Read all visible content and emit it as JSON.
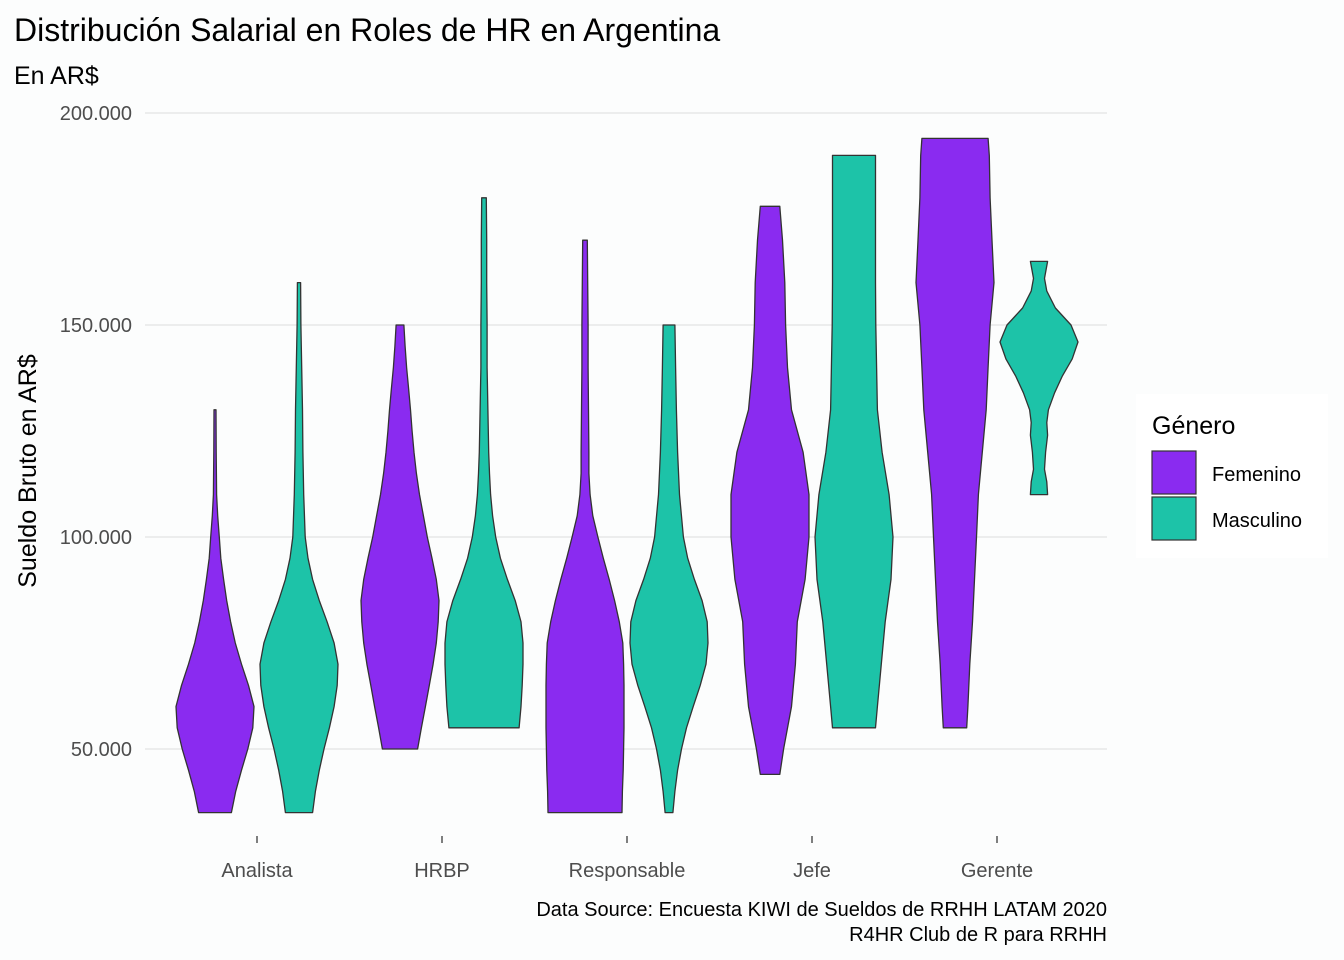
{
  "chart_data": {
    "type": "violin",
    "title": "Distribución Salarial en Roles de HR en Argentina",
    "subtitle": "En AR$",
    "xlabel": "",
    "ylabel": "Sueldo Bruto en AR$",
    "ylim": [
      30000,
      200000
    ],
    "yticks": [
      50000,
      100000,
      150000,
      200000
    ],
    "ytick_labels": [
      "50.000",
      "100.000",
      "150.000",
      "200.000"
    ],
    "categories": [
      "Analista",
      "HRBP",
      "Responsable",
      "Jefe",
      "Gerente"
    ],
    "legend": {
      "title": "Género",
      "position": "right",
      "items": [
        {
          "name": "Femenino",
          "color": "#8a2bf0"
        },
        {
          "name": "Masculino",
          "color": "#1dc3a8"
        }
      ]
    },
    "caption": [
      "Data Source: Encuesta KIWI de Sueldos de RRHH LATAM 2020",
      "R4HR Club de R para RRHH"
    ],
    "grid": "horizontal major",
    "series": [
      {
        "name": "Femenino",
        "color": "#8a2bf0",
        "violins": [
          {
            "category": "Analista",
            "profile": [
              [
                35000,
                0.42
              ],
              [
                40000,
                0.53
              ],
              [
                45000,
                0.68
              ],
              [
                50000,
                0.84
              ],
              [
                55000,
                0.97
              ],
              [
                60000,
                1.0
              ],
              [
                65000,
                0.86
              ],
              [
                70000,
                0.68
              ],
              [
                75000,
                0.52
              ],
              [
                80000,
                0.4
              ],
              [
                85000,
                0.3
              ],
              [
                90000,
                0.22
              ],
              [
                95000,
                0.15
              ],
              [
                100000,
                0.11
              ],
              [
                105000,
                0.07
              ],
              [
                110000,
                0.04
              ],
              [
                115000,
                0.035
              ],
              [
                120000,
                0.03
              ],
              [
                125000,
                0.028
              ],
              [
                130000,
                0.025
              ]
            ]
          },
          {
            "category": "HRBP",
            "profile": [
              [
                50000,
                0.45
              ],
              [
                55000,
                0.55
              ],
              [
                60000,
                0.65
              ],
              [
                65000,
                0.75
              ],
              [
                70000,
                0.85
              ],
              [
                75000,
                0.93
              ],
              [
                80000,
                0.98
              ],
              [
                85000,
                1.0
              ],
              [
                90000,
                0.93
              ],
              [
                95000,
                0.82
              ],
              [
                100000,
                0.7
              ],
              [
                105000,
                0.6
              ],
              [
                110000,
                0.5
              ],
              [
                115000,
                0.42
              ],
              [
                120000,
                0.36
              ],
              [
                125000,
                0.31
              ],
              [
                130000,
                0.27
              ],
              [
                135000,
                0.22
              ],
              [
                140000,
                0.17
              ],
              [
                145000,
                0.13
              ],
              [
                150000,
                0.1
              ]
            ]
          },
          {
            "category": "Responsable",
            "profile": [
              [
                35000,
                0.95
              ],
              [
                40000,
                0.96
              ],
              [
                45000,
                0.98
              ],
              [
                50000,
                0.99
              ],
              [
                55000,
                1.0
              ],
              [
                60000,
                1.0
              ],
              [
                65000,
                1.0
              ],
              [
                70000,
                0.99
              ],
              [
                75000,
                0.97
              ],
              [
                80000,
                0.88
              ],
              [
                85000,
                0.76
              ],
              [
                90000,
                0.62
              ],
              [
                95000,
                0.47
              ],
              [
                100000,
                0.33
              ],
              [
                105000,
                0.2
              ],
              [
                110000,
                0.13
              ],
              [
                115000,
                0.1
              ],
              [
                120000,
                0.1
              ],
              [
                130000,
                0.09
              ],
              [
                140000,
                0.08
              ],
              [
                150000,
                0.08
              ],
              [
                160000,
                0.07
              ],
              [
                170000,
                0.06
              ]
            ]
          },
          {
            "category": "Jefe",
            "profile": [
              [
                44000,
                0.25
              ],
              [
                50000,
                0.35
              ],
              [
                60000,
                0.55
              ],
              [
                70000,
                0.65
              ],
              [
                80000,
                0.7
              ],
              [
                90000,
                0.9
              ],
              [
                100000,
                1.0
              ],
              [
                110000,
                1.0
              ],
              [
                120000,
                0.85
              ],
              [
                130000,
                0.55
              ],
              [
                140000,
                0.45
              ],
              [
                150000,
                0.4
              ],
              [
                160000,
                0.38
              ],
              [
                170000,
                0.32
              ],
              [
                178000,
                0.25
              ]
            ]
          },
          {
            "category": "Gerente",
            "profile": [
              [
                55000,
                0.3
              ],
              [
                60000,
                0.33
              ],
              [
                70000,
                0.38
              ],
              [
                80000,
                0.45
              ],
              [
                90000,
                0.5
              ],
              [
                100000,
                0.55
              ],
              [
                110000,
                0.6
              ],
              [
                120000,
                0.7
              ],
              [
                130000,
                0.8
              ],
              [
                140000,
                0.85
              ],
              [
                150000,
                0.9
              ],
              [
                160000,
                1.0
              ],
              [
                170000,
                0.95
              ],
              [
                180000,
                0.9
              ],
              [
                190000,
                0.88
              ],
              [
                194000,
                0.85
              ]
            ]
          }
        ]
      },
      {
        "name": "Masculino",
        "color": "#1dc3a8",
        "violins": [
          {
            "category": "Analista",
            "profile": [
              [
                35000,
                0.35
              ],
              [
                40000,
                0.42
              ],
              [
                45000,
                0.52
              ],
              [
                50000,
                0.64
              ],
              [
                55000,
                0.78
              ],
              [
                60000,
                0.9
              ],
              [
                65000,
                0.98
              ],
              [
                70000,
                1.0
              ],
              [
                75000,
                0.9
              ],
              [
                80000,
                0.72
              ],
              [
                85000,
                0.52
              ],
              [
                90000,
                0.35
              ],
              [
                95000,
                0.23
              ],
              [
                100000,
                0.16
              ],
              [
                110000,
                0.12
              ],
              [
                120000,
                0.1
              ],
              [
                130000,
                0.09
              ],
              [
                140000,
                0.07
              ],
              [
                150000,
                0.05
              ],
              [
                160000,
                0.04
              ]
            ]
          },
          {
            "category": "HRBP",
            "profile": [
              [
                55000,
                0.9
              ],
              [
                60000,
                0.95
              ],
              [
                65000,
                0.98
              ],
              [
                70000,
                1.0
              ],
              [
                75000,
                1.0
              ],
              [
                80000,
                0.95
              ],
              [
                85000,
                0.8
              ],
              [
                90000,
                0.6
              ],
              [
                95000,
                0.42
              ],
              [
                100000,
                0.3
              ],
              [
                105000,
                0.22
              ],
              [
                110000,
                0.17
              ],
              [
                115000,
                0.14
              ],
              [
                120000,
                0.12
              ],
              [
                130000,
                0.1
              ],
              [
                140000,
                0.08
              ],
              [
                150000,
                0.08
              ],
              [
                160000,
                0.07
              ],
              [
                170000,
                0.07
              ],
              [
                180000,
                0.06
              ]
            ]
          },
          {
            "category": "Responsable",
            "profile": [
              [
                35000,
                0.1
              ],
              [
                40000,
                0.15
              ],
              [
                45000,
                0.22
              ],
              [
                50000,
                0.32
              ],
              [
                55000,
                0.45
              ],
              [
                60000,
                0.62
              ],
              [
                65000,
                0.8
              ],
              [
                70000,
                0.95
              ],
              [
                75000,
                1.0
              ],
              [
                80000,
                0.98
              ],
              [
                85000,
                0.85
              ],
              [
                90000,
                0.65
              ],
              [
                95000,
                0.48
              ],
              [
                100000,
                0.37
              ],
              [
                110000,
                0.27
              ],
              [
                120000,
                0.22
              ],
              [
                130000,
                0.19
              ],
              [
                140000,
                0.17
              ],
              [
                150000,
                0.15
              ]
            ]
          },
          {
            "category": "Jefe",
            "profile": [
              [
                55000,
                0.55
              ],
              [
                60000,
                0.6
              ],
              [
                70000,
                0.7
              ],
              [
                80000,
                0.8
              ],
              [
                90000,
                0.95
              ],
              [
                100000,
                1.0
              ],
              [
                110000,
                0.9
              ],
              [
                120000,
                0.72
              ],
              [
                130000,
                0.6
              ],
              [
                140000,
                0.58
              ],
              [
                150000,
                0.56
              ],
              [
                160000,
                0.55
              ],
              [
                170000,
                0.55
              ],
              [
                180000,
                0.55
              ],
              [
                190000,
                0.55
              ]
            ]
          },
          {
            "category": "Gerente",
            "profile": [
              [
                110000,
                0.22
              ],
              [
                113000,
                0.2
              ],
              [
                116000,
                0.14
              ],
              [
                120000,
                0.17
              ],
              [
                124000,
                0.22
              ],
              [
                127000,
                0.2
              ],
              [
                130000,
                0.24
              ],
              [
                134000,
                0.4
              ],
              [
                138000,
                0.6
              ],
              [
                142000,
                0.85
              ],
              [
                146000,
                1.0
              ],
              [
                150000,
                0.82
              ],
              [
                154000,
                0.42
              ],
              [
                158000,
                0.2
              ],
              [
                161000,
                0.14
              ],
              [
                165000,
                0.22
              ]
            ]
          }
        ]
      }
    ]
  }
}
